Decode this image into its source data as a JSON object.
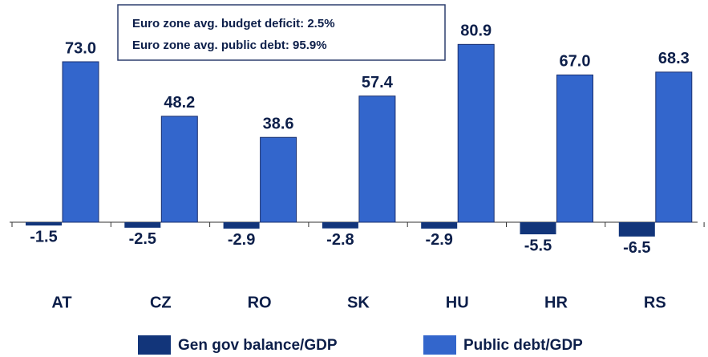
{
  "chart_data": {
    "type": "bar",
    "annotations": [
      "Euro zone avg. budget deficit: 2.5%",
      "Euro zone avg. public debt: 95.9%"
    ],
    "categories": [
      "AT",
      "CZ",
      "RO",
      "SK",
      "HU",
      "HR",
      "RS"
    ],
    "series": [
      {
        "name": "Gen gov balance/GDP",
        "color": "#12357a",
        "values": [
          -1.5,
          -2.5,
          -2.9,
          -2.8,
          -2.9,
          -5.5,
          -6.5
        ]
      },
      {
        "name": "Public debt/GDP",
        "color": "#3366cc",
        "values": [
          73,
          48.2,
          38.6,
          57.4,
          80.9,
          67,
          68.3
        ],
        "value_labels": [
          "73.0",
          "48.2",
          "38.6",
          "57.4",
          "80.9",
          "67.0",
          "68.3"
        ]
      }
    ]
  }
}
